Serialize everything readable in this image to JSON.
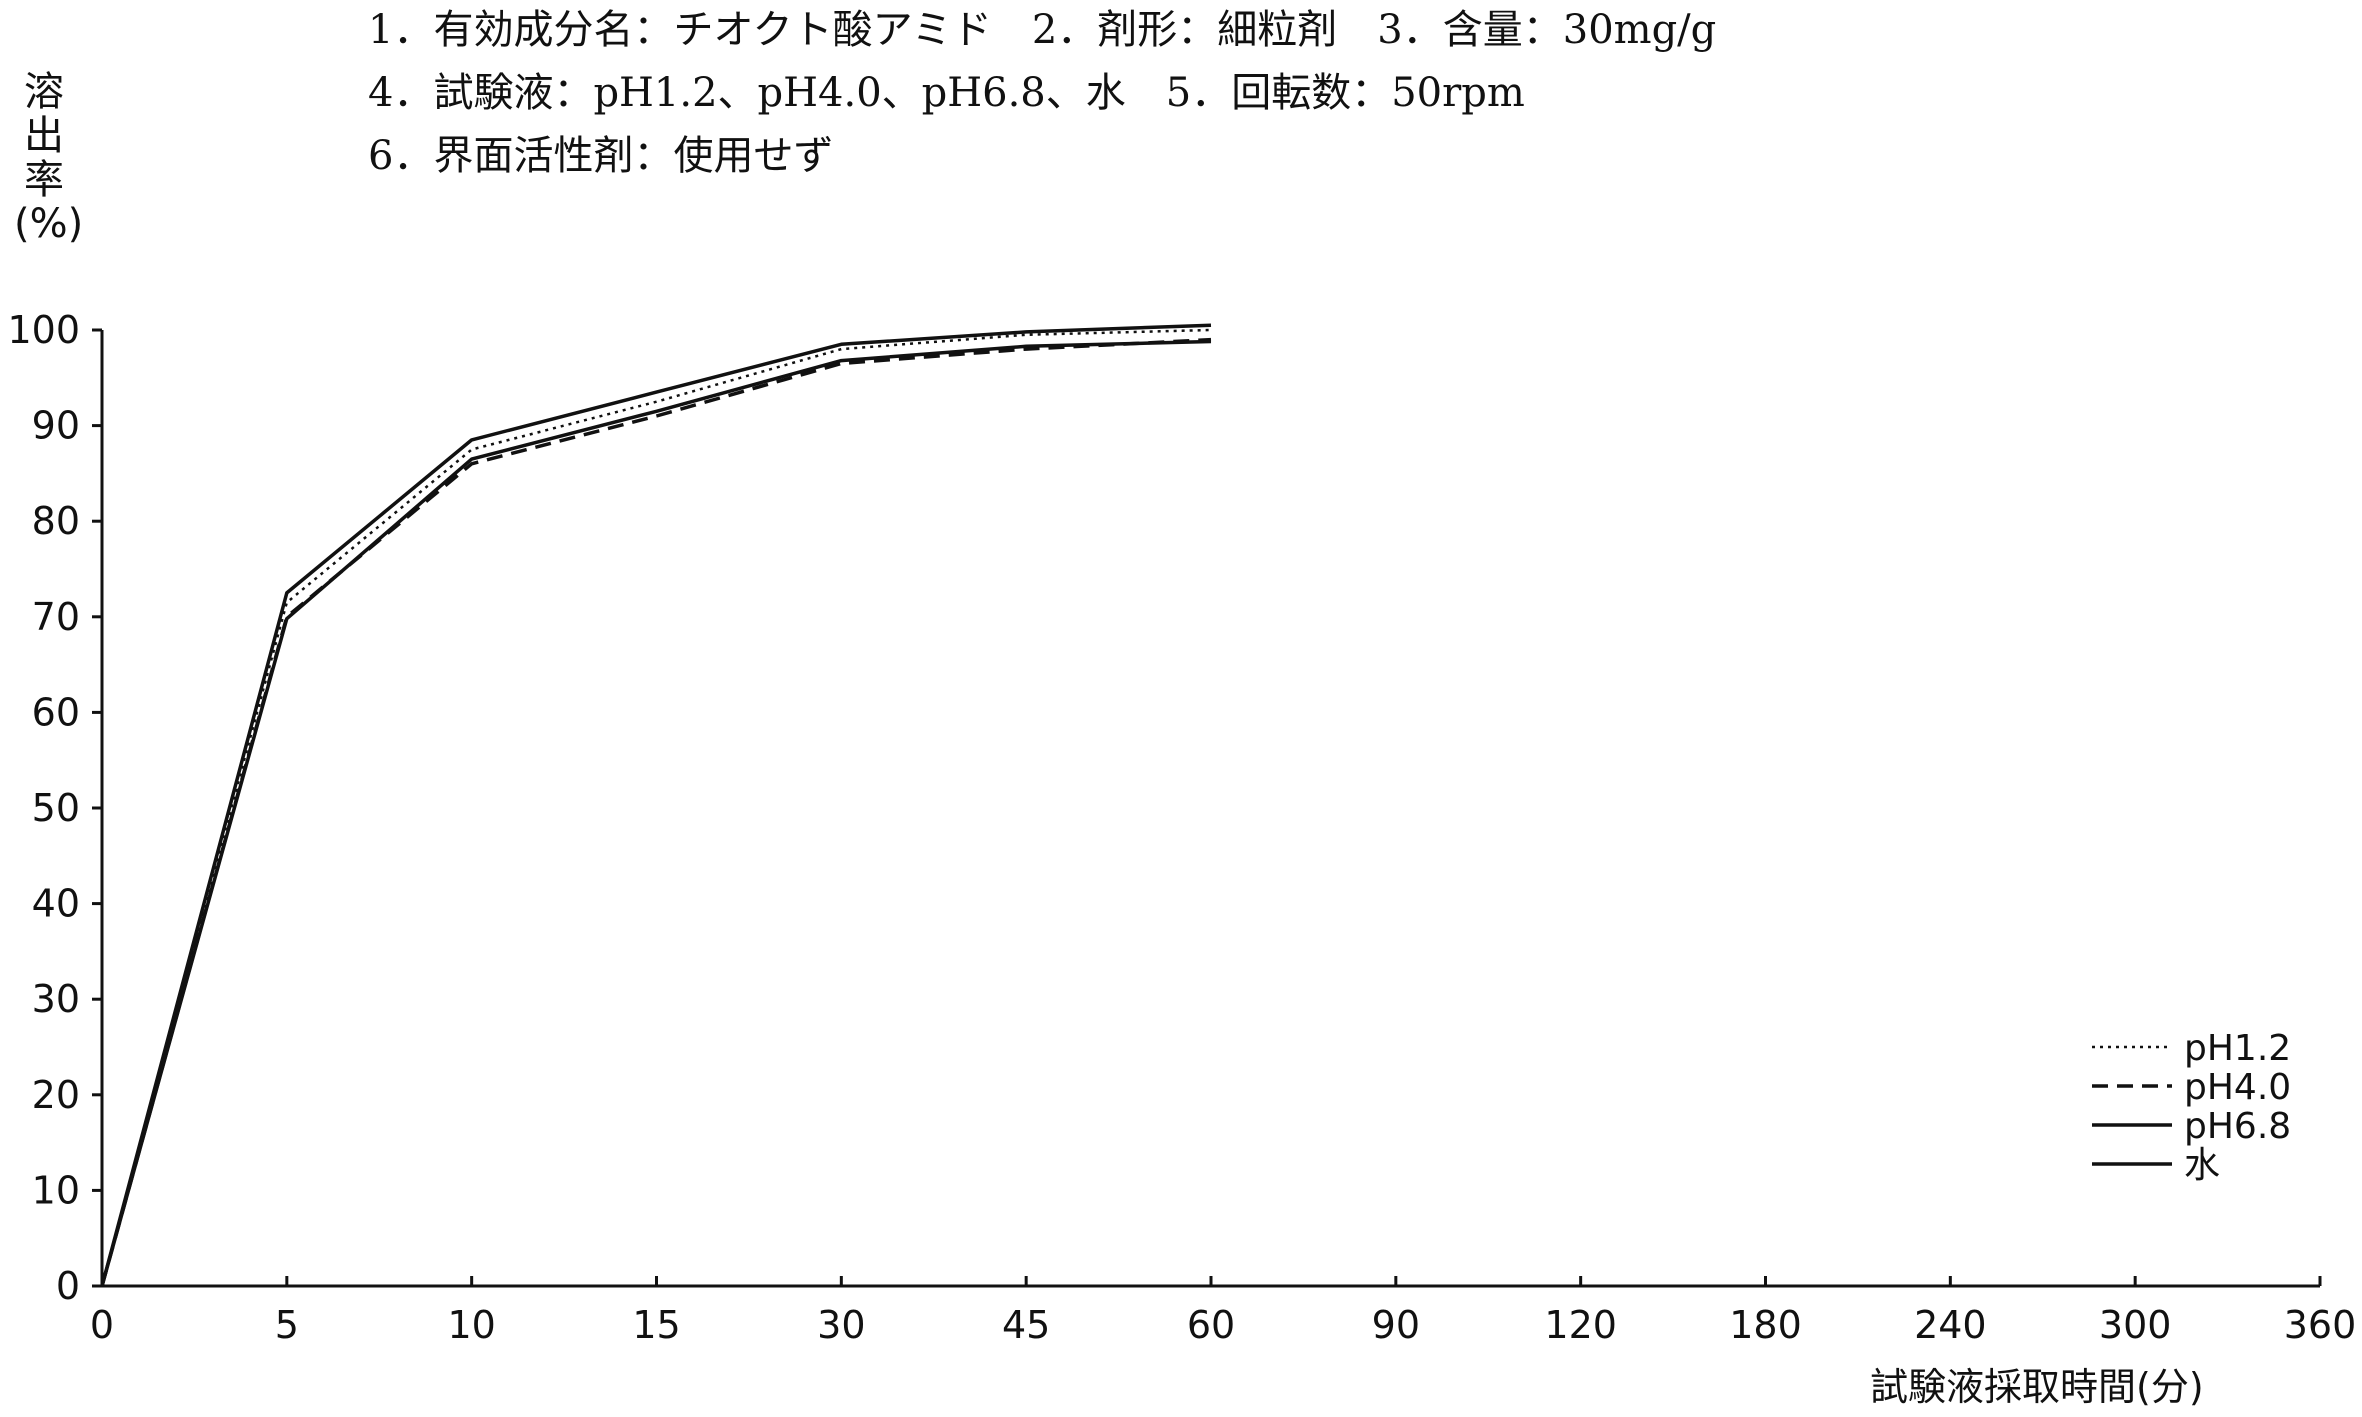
{
  "conditions": [
    "1．有効成分名：チオクト酸アミド　2．剤形：細粒剤　3．含量：30mg/g",
    "4．試験液：pH1.2、pH4.0、pH6.8、水　5．回転数：50rpm",
    "6．界面活性剤：使用せず"
  ],
  "chart_data": {
    "type": "line",
    "title": "",
    "xlabel": "試験液採取時間(分)",
    "ylabel": "溶出率(%)",
    "ylabel_chars": [
      "溶",
      "出",
      "率",
      "(%)"
    ],
    "x_ticks": [
      "0",
      "5",
      "10",
      "15",
      "30",
      "45",
      "60",
      "90",
      "120",
      "180",
      "240",
      "300",
      "360"
    ],
    "y_ticks": [
      0,
      10,
      20,
      30,
      40,
      50,
      60,
      70,
      80,
      90,
      100
    ],
    "ylim": [
      0,
      100
    ],
    "legend_position": "right",
    "series": [
      {
        "name": "pH1.2",
        "style": "dotted",
        "x": [
          0,
          5,
          10,
          15,
          30,
          45,
          60
        ],
        "y": [
          0,
          71.5,
          87.5,
          92.5,
          98.0,
          99.5,
          100.0
        ]
      },
      {
        "name": "pH4.0",
        "style": "dashed",
        "x": [
          0,
          5,
          10,
          15,
          30,
          45,
          60
        ],
        "y": [
          0,
          70.0,
          86.0,
          91.0,
          96.5,
          98.0,
          99.0
        ]
      },
      {
        "name": "pH6.8",
        "style": "solid",
        "x": [
          0,
          5,
          10,
          15,
          30,
          45,
          60
        ],
        "y": [
          0,
          72.5,
          88.5,
          93.5,
          98.5,
          99.8,
          100.5
        ]
      },
      {
        "name": "水",
        "style": "solid",
        "x": [
          0,
          5,
          10,
          15,
          30,
          45,
          60
        ],
        "y": [
          0,
          69.8,
          86.5,
          91.5,
          96.8,
          98.3,
          98.8
        ]
      }
    ]
  }
}
